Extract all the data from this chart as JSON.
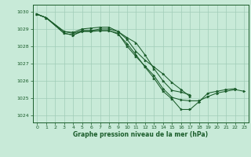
{
  "xlabel": "Graphe pression niveau de la mer (hPa)",
  "bg_color": "#c8ead8",
  "grid_color": "#a0ccb8",
  "line_color": "#1a5c2a",
  "xlim": [
    -0.5,
    23.5
  ],
  "ylim": [
    1023.6,
    1030.4
  ],
  "yticks": [
    1024,
    1025,
    1026,
    1027,
    1028,
    1029,
    1030
  ],
  "xticks": [
    0,
    1,
    2,
    3,
    4,
    5,
    6,
    7,
    8,
    9,
    10,
    11,
    12,
    13,
    14,
    15,
    16,
    17,
    18,
    19,
    20,
    21,
    22,
    23
  ],
  "series": [
    {
      "x": [
        0,
        1,
        3,
        4,
        5,
        6,
        7,
        8,
        9,
        10,
        11,
        12,
        13,
        14,
        15,
        16,
        17
      ],
      "y": [
        1029.85,
        1029.65,
        1028.85,
        1028.75,
        1028.9,
        1028.9,
        1029.0,
        1029.0,
        1028.85,
        1028.4,
        1027.7,
        1027.2,
        1026.8,
        1026.4,
        1025.9,
        1025.5,
        1025.1
      ]
    },
    {
      "x": [
        0,
        1,
        3,
        4,
        5,
        6,
        7,
        8,
        9,
        10,
        11,
        12,
        13,
        14,
        15,
        16,
        17
      ],
      "y": [
        1029.85,
        1029.65,
        1028.85,
        1028.8,
        1029.0,
        1029.05,
        1029.1,
        1029.1,
        1028.85,
        1028.5,
        1028.2,
        1027.5,
        1026.7,
        1026.0,
        1025.45,
        1025.35,
        1025.2
      ]
    },
    {
      "x": [
        0,
        1,
        3,
        4,
        5,
        6,
        7,
        8,
        9,
        10,
        11,
        12,
        13,
        14,
        15,
        16,
        17,
        18,
        19,
        20,
        21,
        22
      ],
      "y": [
        1029.85,
        1029.65,
        1028.75,
        1028.65,
        1028.9,
        1028.9,
        1028.9,
        1028.9,
        1028.7,
        1028.15,
        1027.5,
        1026.8,
        1026.15,
        1025.4,
        1024.95,
        1024.35,
        1024.35,
        1024.8,
        1025.3,
        1025.4,
        1025.5,
        1025.55
      ]
    },
    {
      "x": [
        0,
        1,
        3,
        4,
        5,
        6,
        7,
        8,
        9,
        10,
        11,
        12,
        13,
        14,
        15,
        16,
        17,
        18,
        19,
        20,
        21,
        22,
        23
      ],
      "y": [
        1029.85,
        1029.65,
        1028.75,
        1028.65,
        1028.85,
        1028.85,
        1028.9,
        1028.9,
        1028.75,
        1028.0,
        1027.4,
        1026.85,
        1026.3,
        1025.55,
        1025.05,
        1024.9,
        1024.85,
        1024.85,
        1025.1,
        1025.3,
        1025.4,
        1025.5,
        1025.4
      ]
    }
  ]
}
